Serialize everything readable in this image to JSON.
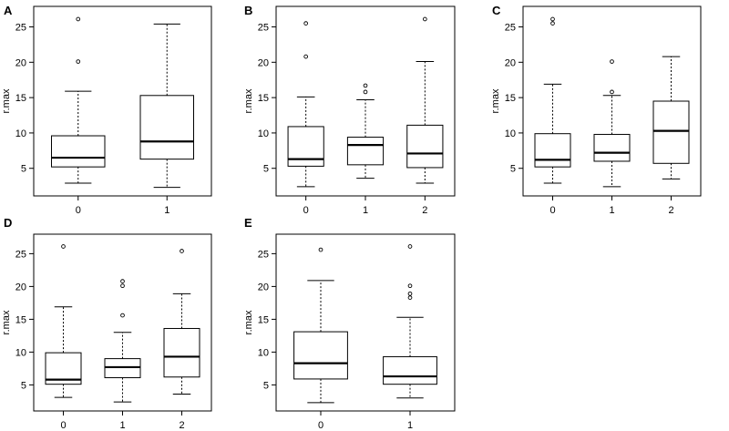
{
  "chart_data": [
    {
      "panel": "A",
      "type": "box",
      "ylabel": "r.max",
      "ylim": [
        2,
        27
      ],
      "yticks": [
        "5",
        "10",
        "15",
        "20",
        "25"
      ],
      "categories": [
        "0",
        "1"
      ],
      "boxes": [
        {
          "min": 2.9,
          "q1": 5.2,
          "median": 6.5,
          "q3": 9.6,
          "max": 15.9,
          "outliers": [
            20.1,
            26.1
          ]
        },
        {
          "min": 2.3,
          "q1": 6.3,
          "median": 8.8,
          "q3": 15.3,
          "max": 25.4,
          "outliers": []
        }
      ]
    },
    {
      "panel": "B",
      "type": "box",
      "ylabel": "r.max",
      "ylim": [
        2,
        27
      ],
      "yticks": [
        "5",
        "10",
        "15",
        "20",
        "25"
      ],
      "categories": [
        "0",
        "1",
        "2"
      ],
      "boxes": [
        {
          "min": 2.4,
          "q1": 5.3,
          "median": 6.3,
          "q3": 10.9,
          "max": 15.1,
          "outliers": [
            20.8,
            25.5
          ]
        },
        {
          "min": 3.6,
          "q1": 5.5,
          "median": 8.3,
          "q3": 9.4,
          "max": 14.7,
          "outliers": [
            15.8,
            16.7
          ]
        },
        {
          "min": 2.9,
          "q1": 5.1,
          "median": 7.1,
          "q3": 11.1,
          "max": 20.1,
          "outliers": [
            26.1
          ]
        }
      ]
    },
    {
      "panel": "C",
      "type": "box",
      "ylabel": "r.max",
      "ylim": [
        2,
        27
      ],
      "yticks": [
        "5",
        "10",
        "15",
        "20",
        "25"
      ],
      "categories": [
        "0",
        "1",
        "2"
      ],
      "boxes": [
        {
          "min": 2.9,
          "q1": 5.2,
          "median": 6.2,
          "q3": 9.9,
          "max": 16.9,
          "outliers": [
            25.5,
            26.1
          ]
        },
        {
          "min": 2.4,
          "q1": 6.0,
          "median": 7.2,
          "q3": 9.8,
          "max": 15.3,
          "outliers": [
            15.8,
            20.1
          ]
        },
        {
          "min": 3.5,
          "q1": 5.7,
          "median": 10.3,
          "q3": 14.5,
          "max": 20.8,
          "outliers": []
        }
      ]
    },
    {
      "panel": "D",
      "type": "box",
      "ylabel": "r.max",
      "ylim": [
        2,
        27
      ],
      "yticks": [
        "5",
        "10",
        "15",
        "20",
        "25"
      ],
      "categories": [
        "0",
        "1",
        "2"
      ],
      "boxes": [
        {
          "min": 3.1,
          "q1": 5.1,
          "median": 5.8,
          "q3": 9.9,
          "max": 16.9,
          "outliers": [
            26.1
          ]
        },
        {
          "min": 2.4,
          "q1": 6.1,
          "median": 7.7,
          "q3": 9.0,
          "max": 13.0,
          "outliers": [
            15.6,
            20.1,
            20.8
          ]
        },
        {
          "min": 3.6,
          "q1": 6.2,
          "median": 9.3,
          "q3": 13.6,
          "max": 18.9,
          "outliers": [
            25.4
          ]
        }
      ]
    },
    {
      "panel": "E",
      "type": "box",
      "ylabel": "r.max",
      "ylim": [
        2,
        27
      ],
      "yticks": [
        "5",
        "10",
        "15",
        "20",
        "25"
      ],
      "categories": [
        "0",
        "1"
      ],
      "boxes": [
        {
          "min": 2.3,
          "q1": 5.9,
          "median": 8.3,
          "q3": 13.1,
          "max": 20.9,
          "outliers": [
            25.6
          ]
        },
        {
          "min": 3.0,
          "q1": 5.1,
          "median": 6.3,
          "q3": 9.3,
          "max": 15.3,
          "outliers": [
            18.3,
            18.9,
            20.1,
            26.1
          ]
        }
      ]
    }
  ]
}
